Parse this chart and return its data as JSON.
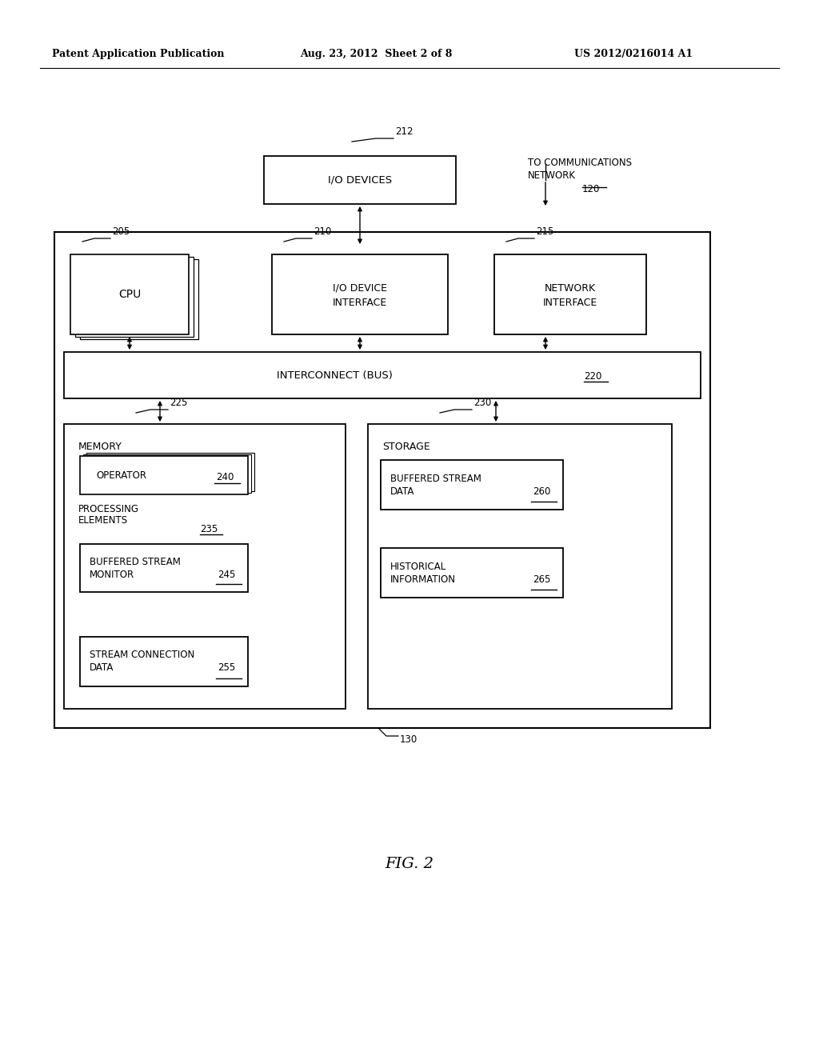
{
  "bg_color": "#ffffff",
  "header_left": "Patent Application Publication",
  "header_mid": "Aug. 23, 2012  Sheet 2 of 8",
  "header_right": "US 2012/0216014 A1",
  "fig_label": "FIG. 2"
}
